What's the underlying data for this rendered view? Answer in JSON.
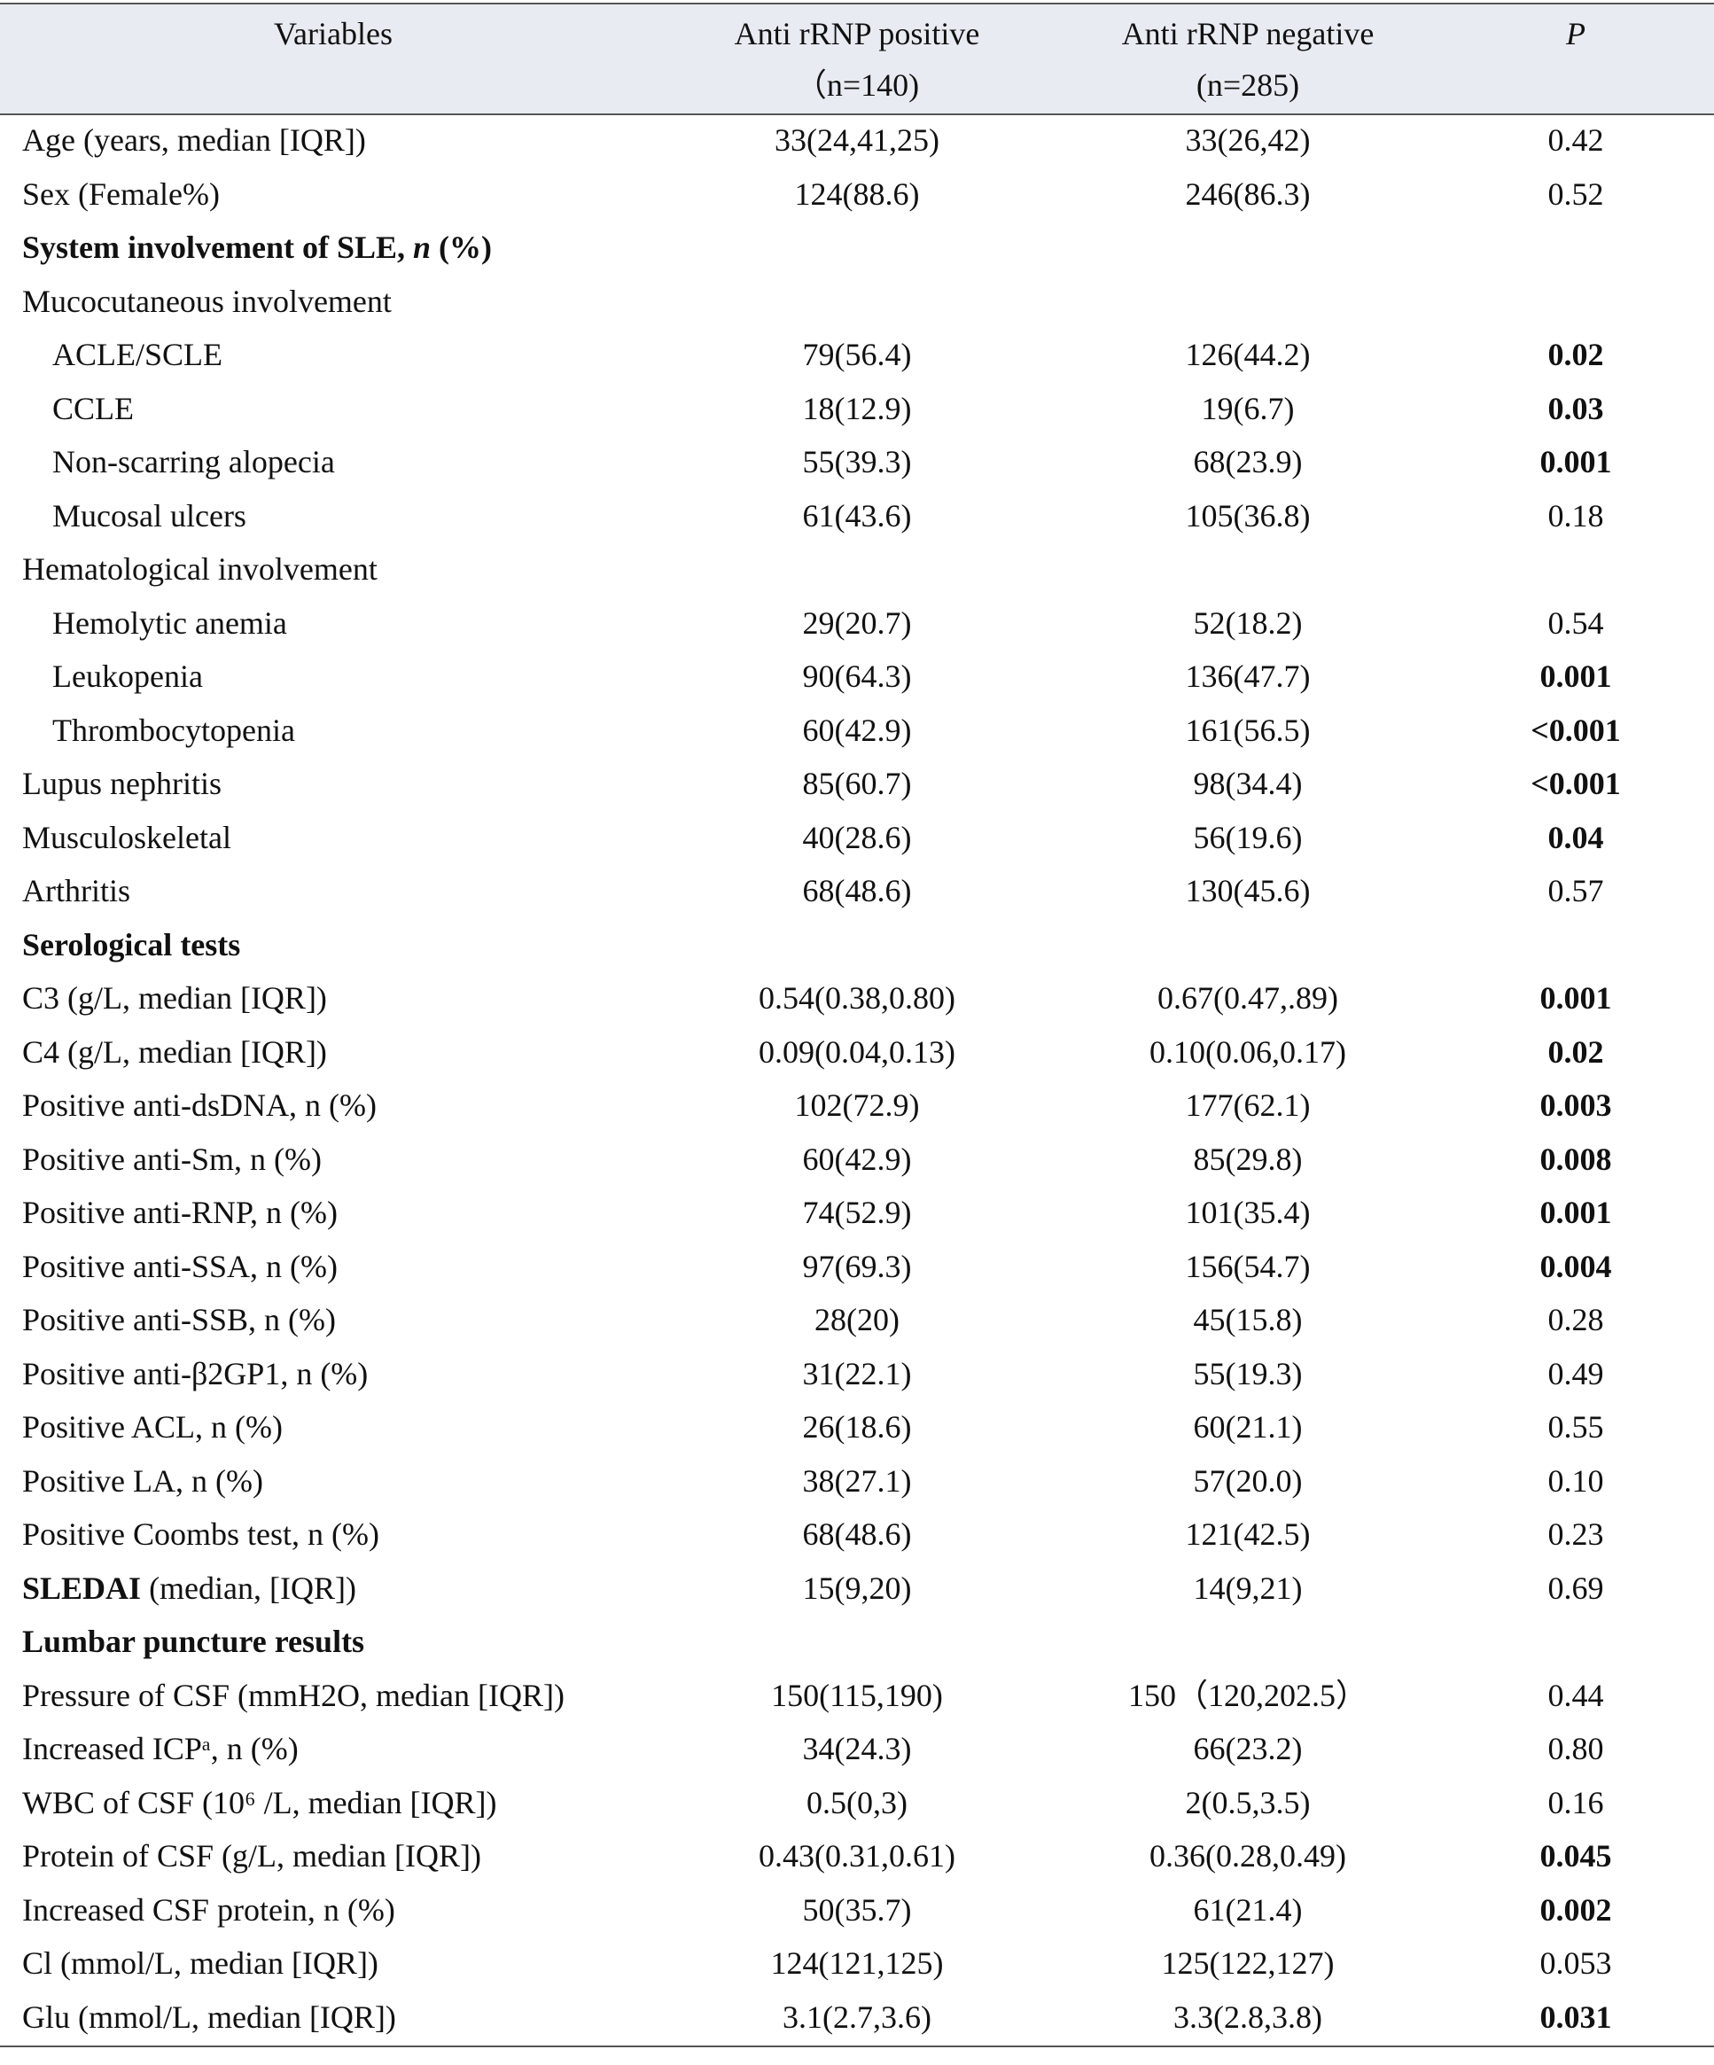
{
  "table": {
    "header": [
      {
        "lines": [
          "Variables"
        ]
      },
      {
        "lines": [
          "Anti rRNP positive",
          "（n=140)"
        ]
      },
      {
        "lines": [
          "Anti rRNP negative",
          "(n=285)"
        ]
      },
      {
        "lines": [
          "P"
        ],
        "italic": true
      }
    ],
    "rows": [
      {
        "cells": [
          "Age (years, median [IQR])",
          "33(24,41,25)",
          "33(26,42)",
          "0.42"
        ]
      },
      {
        "cells": [
          "Sex (Female%)",
          "124(88.6)",
          "246(86.3)",
          "0.52"
        ]
      },
      {
        "cells": [
          [
            "System involvement of SLE, ",
            {
              "text": "n",
              "italic": true
            },
            " (%)"
          ]
        ],
        "section": true
      },
      {
        "cells": [
          "Mucocutaneous involvement"
        ]
      },
      {
        "cells": [
          "ACLE/SCLE",
          "79(56.4)",
          "126(44.2)",
          "0.02"
        ],
        "indent": true,
        "bold_p": true
      },
      {
        "cells": [
          "CCLE",
          "18(12.9)",
          "19(6.7)",
          "0.03"
        ],
        "indent": true,
        "bold_p": true
      },
      {
        "cells": [
          "Non-scarring alopecia",
          "55(39.3)",
          "68(23.9)",
          "0.001"
        ],
        "indent": true,
        "bold_p": true
      },
      {
        "cells": [
          "Mucosal ulcers",
          "61(43.6)",
          "105(36.8)",
          "0.18"
        ],
        "indent": true
      },
      {
        "cells": [
          "Hematological involvement"
        ]
      },
      {
        "cells": [
          "Hemolytic anemia",
          "29(20.7)",
          "52(18.2)",
          "0.54"
        ],
        "indent": true
      },
      {
        "cells": [
          "Leukopenia",
          "90(64.3)",
          "136(47.7)",
          "0.001"
        ],
        "indent": true,
        "bold_p": true
      },
      {
        "cells": [
          "Thrombocytopenia",
          "60(42.9)",
          "161(56.5)",
          "<0.001"
        ],
        "indent": true,
        "bold_p": true
      },
      {
        "cells": [
          "Lupus nephritis",
          "85(60.7)",
          "98(34.4)",
          "<0.001"
        ],
        "bold_p": true
      },
      {
        "cells": [
          "Musculoskeletal",
          "40(28.6)",
          "56(19.6)",
          "0.04"
        ],
        "bold_p": true
      },
      {
        "cells": [
          "Arthritis",
          "68(48.6)",
          "130(45.6)",
          "0.57"
        ]
      },
      {
        "cells": [
          "Serological tests"
        ],
        "section": true
      },
      {
        "cells": [
          "C3 (g/L, median [IQR])",
          "0.54(0.38,0.80)",
          "0.67(0.47,.89)",
          "0.001"
        ],
        "bold_p": true
      },
      {
        "cells": [
          "C4 (g/L, median [IQR])",
          "0.09(0.04,0.13)",
          "0.10(0.06,0.17)",
          "0.02"
        ],
        "bold_p": true
      },
      {
        "cells": [
          "Positive anti-dsDNA, n (%)",
          "102(72.9)",
          "177(62.1)",
          "0.003"
        ],
        "bold_p": true
      },
      {
        "cells": [
          "Positive anti-Sm, n (%)",
          "60(42.9)",
          "85(29.8)",
          "0.008"
        ],
        "bold_p": true
      },
      {
        "cells": [
          "Positive anti-RNP, n (%)",
          "74(52.9)",
          "101(35.4)",
          "0.001"
        ],
        "bold_p": true
      },
      {
        "cells": [
          "Positive anti-SSA, n (%)",
          "97(69.3)",
          "156(54.7)",
          "0.004"
        ],
        "bold_p": true
      },
      {
        "cells": [
          "Positive anti-SSB, n (%)",
          "28(20)",
          "45(15.8)",
          "0.28"
        ]
      },
      {
        "cells": [
          "Positive anti-β2GP1, n (%)",
          "31(22.1)",
          "55(19.3)",
          "0.49"
        ]
      },
      {
        "cells": [
          "Positive ACL, n (%)",
          "26(18.6)",
          "60(21.1)",
          "0.55"
        ]
      },
      {
        "cells": [
          "Positive LA, n (%)",
          "38(27.1)",
          "57(20.0)",
          "0.10"
        ]
      },
      {
        "cells": [
          "Positive Coombs test, n (%)",
          "68(48.6)",
          "121(42.5)",
          "0.23"
        ]
      },
      {
        "cells": [
          [
            {
              "text": "SLEDAI",
              "bold": true
            },
            " (median, [IQR])"
          ],
          "15(9,20)",
          "14(9,21)",
          "0.69"
        ]
      },
      {
        "cells": [
          "Lumbar puncture results"
        ],
        "section": true
      },
      {
        "cells": [
          "Pressure of CSF (mmH2O, median [IQR])",
          "150(115,190)",
          "150（120,202.5）",
          "0.44"
        ]
      },
      {
        "cells": [
          "Increased ICPᵃ, n (%)",
          "34(24.3)",
          "66(23.2)",
          "0.80"
        ]
      },
      {
        "cells": [
          "WBC of CSF (10⁶ /L, median [IQR])",
          "0.5(0,3)",
          "2(0.5,3.5)",
          "0.16"
        ]
      },
      {
        "cells": [
          "Protein of CSF (g/L, median [IQR])",
          "0.43(0.31,0.61)",
          "0.36(0.28,0.49)",
          "0.045"
        ],
        "bold_p": true
      },
      {
        "cells": [
          "Increased CSF protein, n (%)",
          "50(35.7)",
          "61(21.4)",
          "0.002"
        ],
        "bold_p": true
      },
      {
        "cells": [
          "Cl (mmol/L, median [IQR])",
          "124(121,125)",
          "125(122,127)",
          "0.053"
        ]
      },
      {
        "cells": [
          "Glu (mmol/L, median [IQR])",
          "3.1(2.7,3.6)",
          "3.3(2.8,3.8)",
          "0.031"
        ],
        "bold_p": true
      }
    ]
  }
}
